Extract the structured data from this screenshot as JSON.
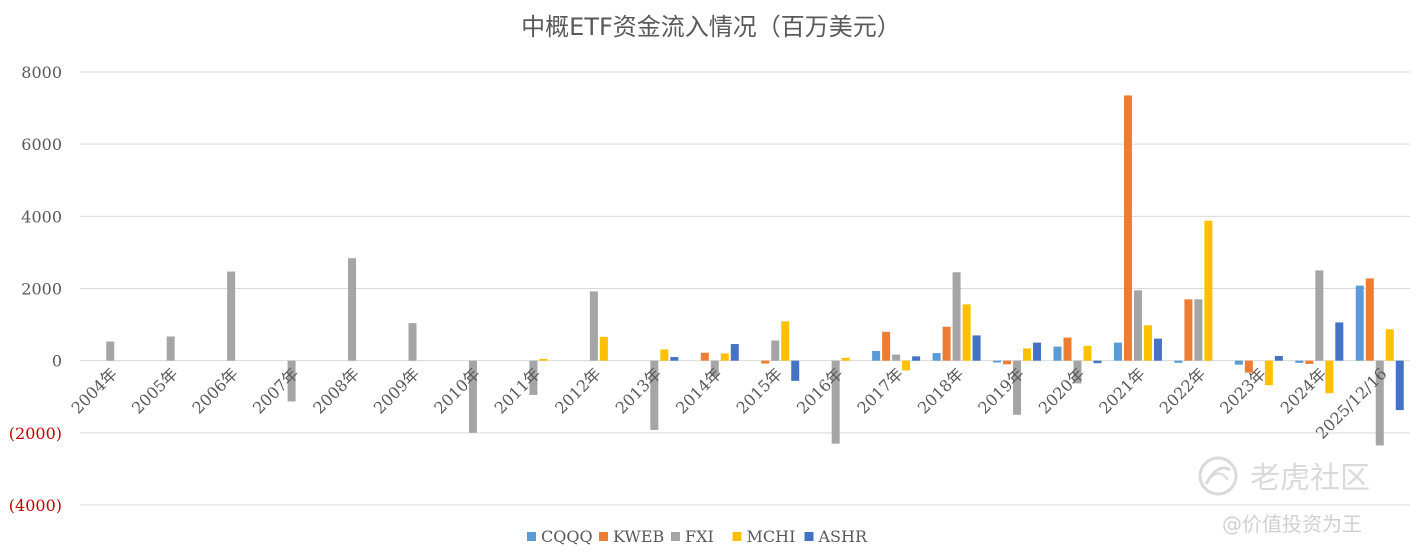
{
  "chart_data": {
    "type": "bar",
    "title": "中概ETF资金流入情况（百万美元）",
    "categories": [
      "2004年",
      "2005年",
      "2006年",
      "2007年",
      "2008年",
      "2009年",
      "2010年",
      "2011年",
      "2012年",
      "2013年",
      "2014年",
      "2015年",
      "2016年",
      "2017年",
      "2018年",
      "2019年",
      "2020年",
      "2021年",
      "2022年",
      "2023年",
      "2024年",
      "2025/12/16"
    ],
    "series": [
      {
        "name": "CQQQ",
        "color": "#5b9bd5",
        "values": [
          0,
          0,
          0,
          0,
          0,
          0,
          0,
          0,
          0,
          0,
          0,
          0,
          0,
          270,
          210,
          -50,
          390,
          500,
          -60,
          -110,
          -60,
          2080
        ]
      },
      {
        "name": "KWEB",
        "color": "#ed7d31",
        "values": [
          0,
          0,
          0,
          0,
          0,
          0,
          0,
          0,
          0,
          0,
          220,
          -80,
          0,
          800,
          940,
          -100,
          640,
          7350,
          1700,
          -330,
          -90,
          2280
        ]
      },
      {
        "name": "FXI",
        "color": "#a5a5a5",
        "values": [
          530,
          670,
          2470,
          -1130,
          2840,
          1040,
          -2000,
          -950,
          1920,
          -1920,
          -430,
          560,
          -2300,
          170,
          2450,
          -1500,
          -630,
          1950,
          1700,
          0,
          2500,
          -2350
        ]
      },
      {
        "name": "MCHI",
        "color": "#ffc000",
        "values": [
          0,
          0,
          0,
          0,
          0,
          0,
          0,
          50,
          660,
          310,
          200,
          1090,
          80,
          -270,
          1560,
          340,
          410,
          980,
          3880,
          -680,
          -900,
          870
        ]
      },
      {
        "name": "ASHR",
        "color": "#4472c4",
        "values": [
          0,
          0,
          0,
          0,
          0,
          0,
          0,
          0,
          0,
          100,
          460,
          -560,
          0,
          120,
          700,
          500,
          -70,
          610,
          0,
          130,
          1060,
          -1370
        ]
      }
    ],
    "yticks": [
      {
        "value": 8000,
        "label": "8000"
      },
      {
        "value": 6000,
        "label": "6000"
      },
      {
        "value": 4000,
        "label": "4000"
      },
      {
        "value": 2000,
        "label": "2000"
      },
      {
        "value": 0,
        "label": "0"
      },
      {
        "value": -2000,
        "label": "(2000)"
      },
      {
        "value": -4000,
        "label": "(4000)"
      }
    ],
    "ylim": [
      -4000,
      8000
    ],
    "grid": true,
    "legend": "bottom",
    "negative_tick_color": "#c00000"
  },
  "watermark": {
    "text": "老虎社区",
    "subtext": "@价值投资为王",
    "icon": "tiger-logo-icon"
  }
}
